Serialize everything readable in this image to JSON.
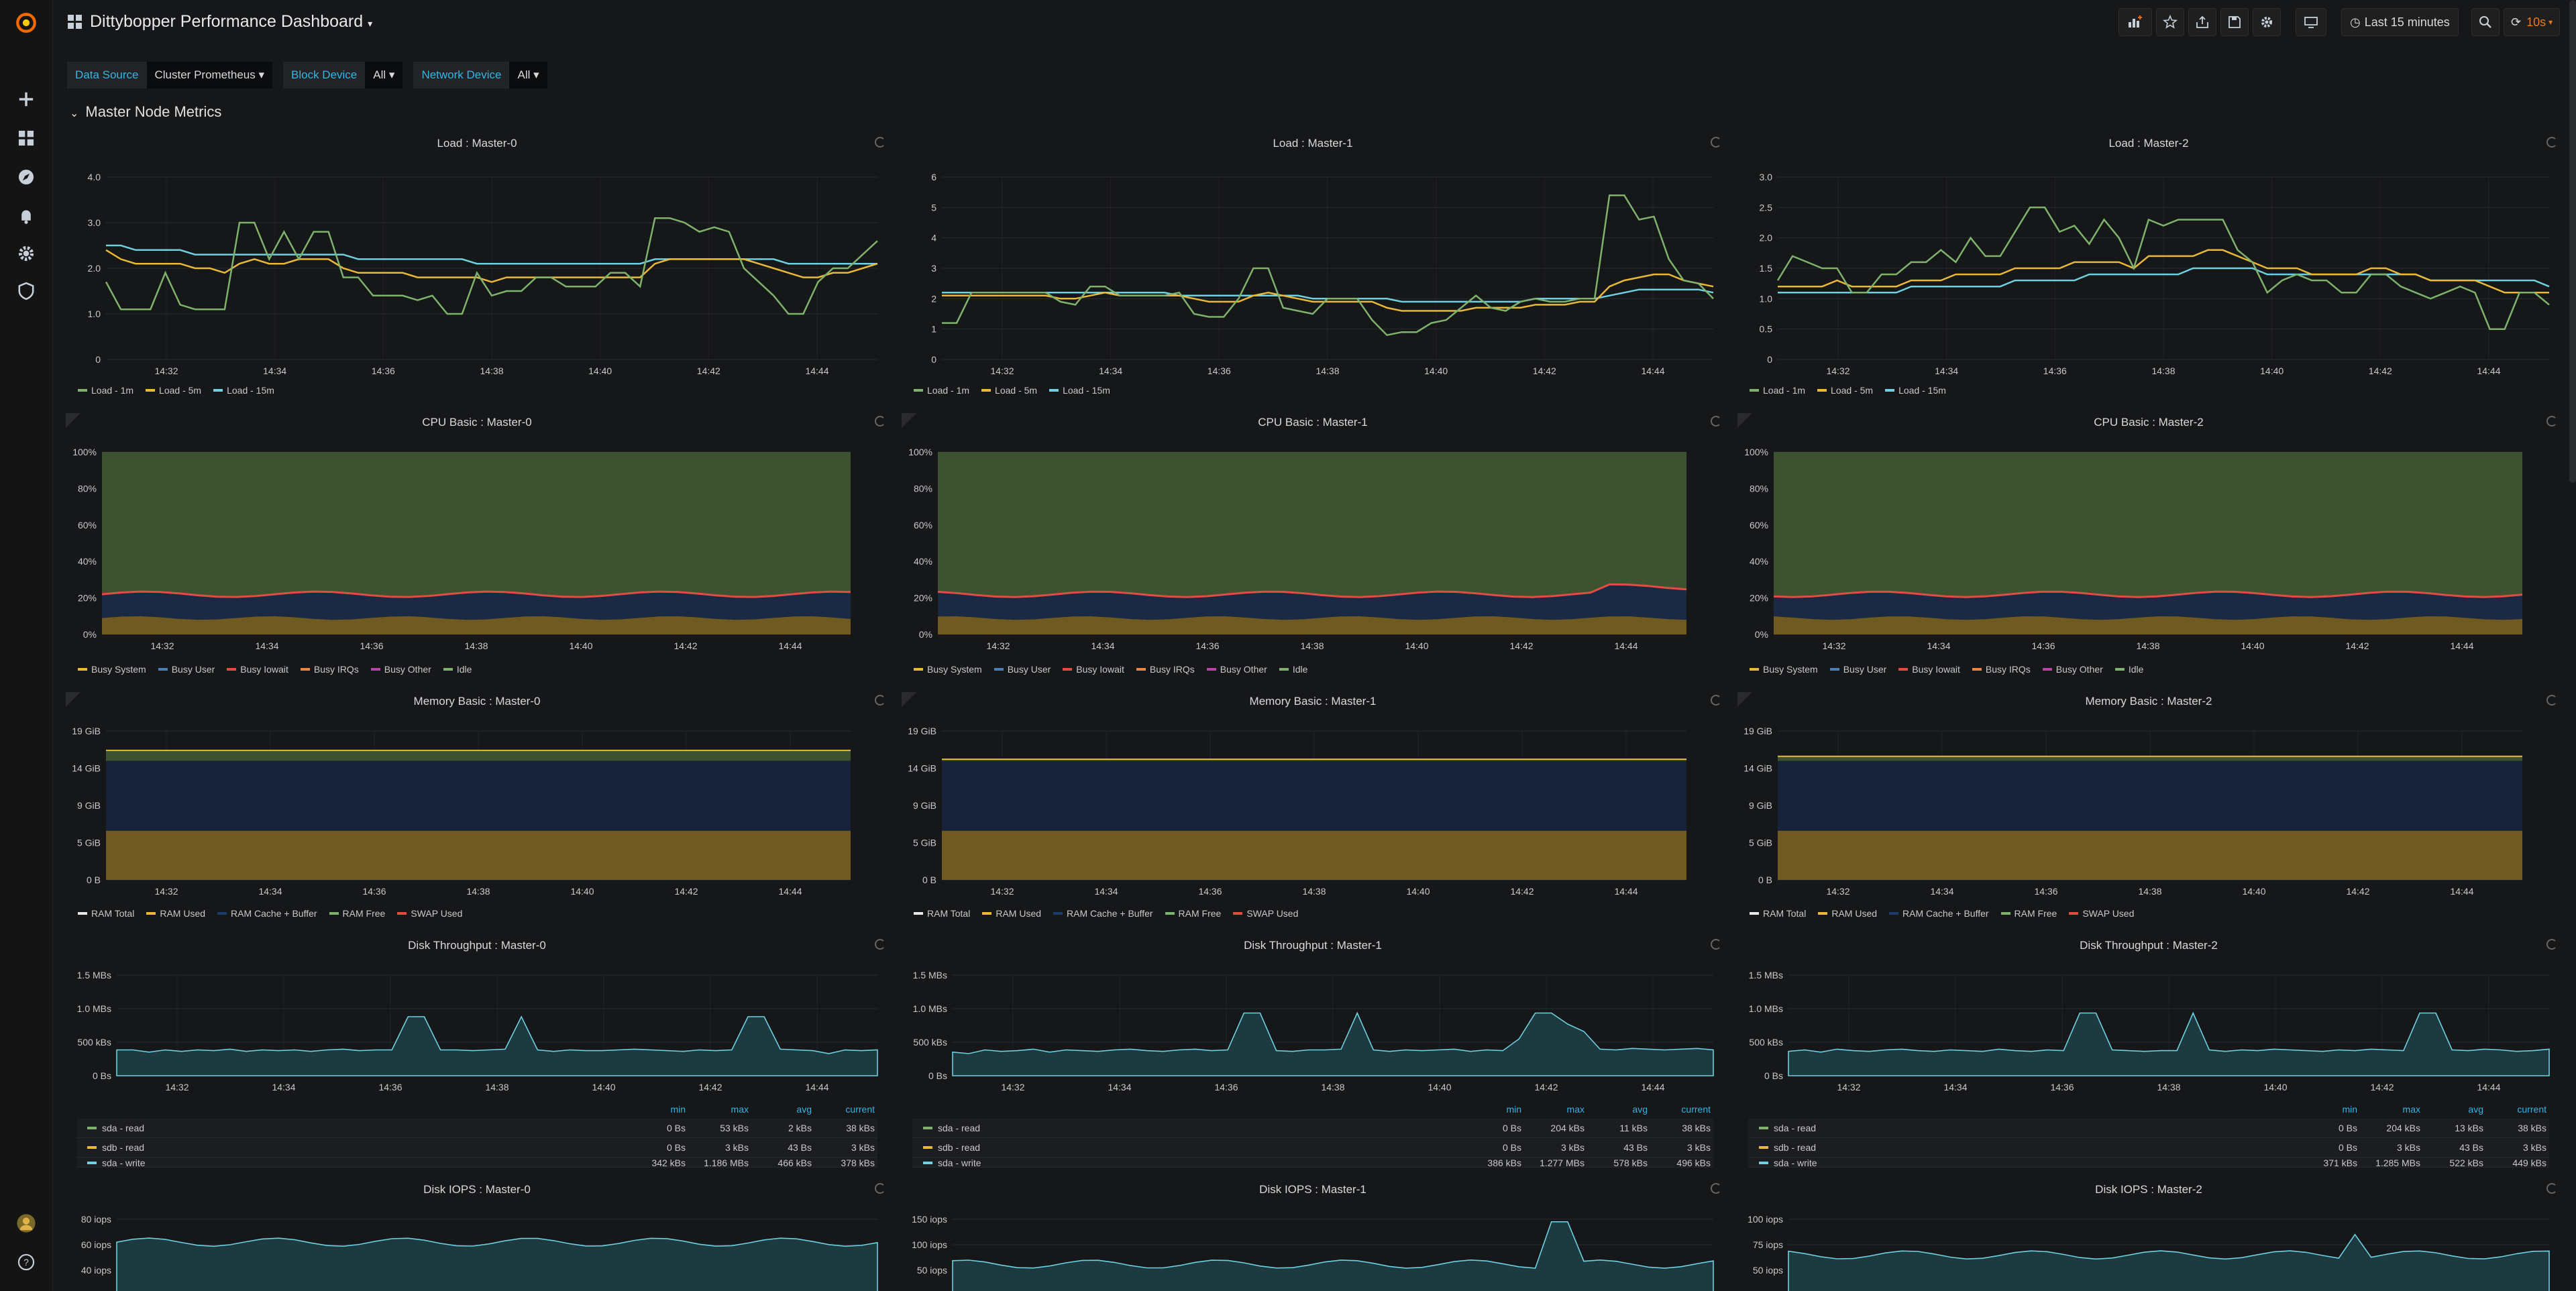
{
  "dashboard": {
    "title": "Dittybopper Performance Dashboard",
    "time_range": "Last 15 minutes",
    "refresh": "10s"
  },
  "variables": [
    {
      "label": "Data Source",
      "value": "Cluster Prometheus"
    },
    {
      "label": "Block Device",
      "value": "All"
    },
    {
      "label": "Network Device",
      "value": "All"
    }
  ],
  "row_title": "Master Node Metrics",
  "colors": {
    "green": "#7eb26d",
    "yellow": "#eab839",
    "cyan": "#6ed0e0",
    "blue": "#1f3b6a",
    "red": "#e24d42",
    "orange": "#ef843c",
    "purple": "#ba43a9",
    "white": "#e8e8e8",
    "disk_cyan": "#6ed0e0"
  },
  "x_ticks": [
    "14:32",
    "14:34",
    "14:36",
    "14:38",
    "14:40",
    "14:42",
    "14:44"
  ],
  "load_panels": [
    {
      "title": "Load : Master-0",
      "y_ticks": [
        "0",
        "1.0",
        "2.0",
        "3.0",
        "4.0"
      ],
      "ymax": 4,
      "legend": [
        "Load - 1m",
        "Load - 5m",
        "Load - 15m"
      ],
      "series": {
        "l1": [
          1.7,
          1.1,
          1.1,
          1.1,
          1.9,
          1.2,
          1.1,
          1.1,
          1.1,
          3.0,
          3.0,
          2.2,
          2.8,
          2.2,
          2.8,
          2.8,
          1.8,
          1.8,
          1.4,
          1.4,
          1.4,
          1.3,
          1.4,
          1.0,
          1.0,
          1.9,
          1.4,
          1.5,
          1.5,
          1.8,
          1.8,
          1.6,
          1.6,
          1.6,
          1.9,
          1.9,
          1.6,
          3.1,
          3.1,
          3.0,
          2.8,
          2.9,
          2.8,
          2.0,
          1.7,
          1.4,
          1.0,
          1.0,
          1.7,
          2.0,
          2.0,
          2.3,
          2.6
        ],
        "l5": [
          2.4,
          2.2,
          2.1,
          2.1,
          2.1,
          2.1,
          2.0,
          2.0,
          1.9,
          2.1,
          2.2,
          2.1,
          2.1,
          2.2,
          2.2,
          2.2,
          2.0,
          1.9,
          1.9,
          1.9,
          1.9,
          1.8,
          1.8,
          1.8,
          1.8,
          1.8,
          1.7,
          1.8,
          1.8,
          1.8,
          1.8,
          1.8,
          1.8,
          1.8,
          1.8,
          1.8,
          1.8,
          2.1,
          2.2,
          2.2,
          2.2,
          2.2,
          2.2,
          2.2,
          2.1,
          2.0,
          1.9,
          1.8,
          1.8,
          1.9,
          1.9,
          2.0,
          2.1
        ],
        "l15": [
          2.5,
          2.5,
          2.4,
          2.4,
          2.4,
          2.4,
          2.3,
          2.3,
          2.3,
          2.3,
          2.3,
          2.3,
          2.3,
          2.3,
          2.3,
          2.3,
          2.3,
          2.2,
          2.2,
          2.2,
          2.2,
          2.2,
          2.2,
          2.2,
          2.2,
          2.1,
          2.1,
          2.1,
          2.1,
          2.1,
          2.1,
          2.1,
          2.1,
          2.1,
          2.1,
          2.1,
          2.1,
          2.2,
          2.2,
          2.2,
          2.2,
          2.2,
          2.2,
          2.2,
          2.2,
          2.2,
          2.1,
          2.1,
          2.1,
          2.1,
          2.1,
          2.1,
          2.1
        ]
      }
    },
    {
      "title": "Load : Master-1",
      "y_ticks": [
        "0",
        "1",
        "2",
        "3",
        "4",
        "5",
        "6"
      ],
      "ymax": 6,
      "legend": [
        "Load - 1m",
        "Load - 5m",
        "Load - 15m"
      ],
      "series": {
        "l1": [
          1.2,
          1.2,
          2.2,
          2.2,
          2.2,
          2.2,
          2.2,
          2.2,
          1.9,
          1.8,
          2.4,
          2.4,
          2.1,
          2.1,
          2.1,
          2.1,
          2.2,
          1.5,
          1.4,
          1.4,
          2.0,
          3.0,
          3.0,
          1.7,
          1.6,
          1.5,
          2.0,
          2.0,
          2.0,
          1.3,
          0.8,
          0.9,
          0.9,
          1.2,
          1.3,
          1.7,
          2.1,
          1.7,
          1.6,
          1.9,
          2.0,
          1.9,
          1.9,
          2.0,
          2.0,
          5.4,
          5.4,
          4.6,
          4.7,
          3.3,
          2.6,
          2.5,
          2.0
        ],
        "l5": [
          2.1,
          2.1,
          2.1,
          2.1,
          2.1,
          2.1,
          2.1,
          2.1,
          2.0,
          2.0,
          2.1,
          2.2,
          2.1,
          2.1,
          2.1,
          2.1,
          2.1,
          2.0,
          1.9,
          1.9,
          1.9,
          2.1,
          2.2,
          2.1,
          2.0,
          1.9,
          1.9,
          1.9,
          1.9,
          1.9,
          1.7,
          1.6,
          1.6,
          1.6,
          1.6,
          1.6,
          1.7,
          1.7,
          1.7,
          1.7,
          1.8,
          1.8,
          1.8,
          1.9,
          1.9,
          2.4,
          2.6,
          2.7,
          2.8,
          2.8,
          2.6,
          2.5,
          2.4
        ],
        "l15": [
          2.2,
          2.2,
          2.2,
          2.2,
          2.2,
          2.2,
          2.2,
          2.2,
          2.2,
          2.2,
          2.2,
          2.2,
          2.2,
          2.2,
          2.2,
          2.2,
          2.1,
          2.1,
          2.1,
          2.1,
          2.1,
          2.1,
          2.1,
          2.1,
          2.1,
          2.0,
          2.0,
          2.0,
          2.0,
          2.0,
          2.0,
          1.9,
          1.9,
          1.9,
          1.9,
          1.9,
          1.9,
          1.9,
          1.9,
          1.9,
          2.0,
          2.0,
          2.0,
          2.0,
          2.0,
          2.1,
          2.2,
          2.3,
          2.3,
          2.3,
          2.3,
          2.3,
          2.2
        ]
      }
    },
    {
      "title": "Load : Master-2",
      "y_ticks": [
        "0",
        "0.5",
        "1.0",
        "1.5",
        "2.0",
        "2.5",
        "3.0"
      ],
      "ymax": 3,
      "legend": [
        "Load - 1m",
        "Load - 5m",
        "Load - 15m"
      ],
      "series": {
        "l1": [
          1.3,
          1.7,
          1.6,
          1.5,
          1.5,
          1.1,
          1.1,
          1.4,
          1.4,
          1.6,
          1.6,
          1.8,
          1.6,
          2.0,
          1.7,
          1.7,
          2.1,
          2.5,
          2.5,
          2.1,
          2.2,
          1.9,
          2.3,
          2.0,
          1.5,
          2.3,
          2.2,
          2.3,
          2.3,
          2.3,
          2.3,
          1.8,
          1.6,
          1.1,
          1.3,
          1.4,
          1.3,
          1.3,
          1.1,
          1.1,
          1.4,
          1.4,
          1.2,
          1.1,
          1.0,
          1.1,
          1.2,
          1.1,
          0.5,
          0.5,
          1.1,
          1.1,
          0.9
        ],
        "l5": [
          1.2,
          1.2,
          1.2,
          1.2,
          1.3,
          1.2,
          1.2,
          1.2,
          1.2,
          1.3,
          1.3,
          1.3,
          1.4,
          1.4,
          1.4,
          1.4,
          1.5,
          1.5,
          1.5,
          1.5,
          1.6,
          1.6,
          1.6,
          1.6,
          1.5,
          1.7,
          1.7,
          1.7,
          1.7,
          1.8,
          1.8,
          1.7,
          1.6,
          1.5,
          1.5,
          1.5,
          1.4,
          1.4,
          1.4,
          1.4,
          1.5,
          1.5,
          1.4,
          1.4,
          1.3,
          1.3,
          1.3,
          1.3,
          1.2,
          1.1,
          1.1,
          1.1,
          1.1
        ],
        "l15": [
          1.1,
          1.1,
          1.1,
          1.1,
          1.1,
          1.1,
          1.1,
          1.1,
          1.1,
          1.2,
          1.2,
          1.2,
          1.2,
          1.2,
          1.2,
          1.2,
          1.3,
          1.3,
          1.3,
          1.3,
          1.3,
          1.4,
          1.4,
          1.4,
          1.4,
          1.4,
          1.4,
          1.4,
          1.5,
          1.5,
          1.5,
          1.5,
          1.5,
          1.4,
          1.4,
          1.4,
          1.4,
          1.4,
          1.4,
          1.4,
          1.4,
          1.4,
          1.4,
          1.4,
          1.3,
          1.3,
          1.3,
          1.3,
          1.3,
          1.3,
          1.3,
          1.3,
          1.2
        ]
      }
    }
  ],
  "cpu_panels": [
    {
      "title": "CPU Basic : Master-0"
    },
    {
      "title": "CPU Basic : Master-1"
    },
    {
      "title": "CPU Basic : Master-2"
    }
  ],
  "cpu_y_ticks": [
    "0%",
    "20%",
    "40%",
    "60%",
    "80%",
    "100%"
  ],
  "cpu_legend": [
    "Busy System",
    "Busy User",
    "Busy Iowait",
    "Busy IRQs",
    "Busy Other",
    "Idle"
  ],
  "mem_panels": [
    {
      "title": "Memory Basic : Master-0"
    },
    {
      "title": "Memory Basic : Master-1"
    },
    {
      "title": "Memory Basic : Master-2"
    }
  ],
  "mem_y_ticks": [
    "0 B",
    "5 GiB",
    "9 GiB",
    "14 GiB",
    "19 GiB"
  ],
  "mem_legend": [
    "RAM Total",
    "RAM Used",
    "RAM Cache + Buffer",
    "RAM Free",
    "SWAP Used"
  ],
  "disk_panels": [
    {
      "title": "Disk Throughput : Master-0",
      "rows": [
        {
          "name": "sda - read",
          "min": "0 Bs",
          "max": "53 kBs",
          "avg": "2 kBs",
          "current": "38 kBs"
        },
        {
          "name": "sdb - read",
          "min": "0 Bs",
          "max": "3 kBs",
          "avg": "43 Bs",
          "current": "3 kBs"
        },
        {
          "name": "sda - write",
          "min": "342 kBs",
          "max": "1.186 MBs",
          "avg": "466 kBs",
          "current": "378 kBs"
        }
      ]
    },
    {
      "title": "Disk Throughput : Master-1",
      "rows": [
        {
          "name": "sda - read",
          "min": "0 Bs",
          "max": "204 kBs",
          "avg": "11 kBs",
          "current": "38 kBs"
        },
        {
          "name": "sdb - read",
          "min": "0 Bs",
          "max": "3 kBs",
          "avg": "43 Bs",
          "current": "3 kBs"
        },
        {
          "name": "sda - write",
          "min": "386 kBs",
          "max": "1.277 MBs",
          "avg": "578 kBs",
          "current": "496 kBs"
        }
      ]
    },
    {
      "title": "Disk Throughput : Master-2",
      "rows": [
        {
          "name": "sda - read",
          "min": "0 Bs",
          "max": "204 kBs",
          "avg": "13 kBs",
          "current": "38 kBs"
        },
        {
          "name": "sdb - read",
          "min": "0 Bs",
          "max": "3 kBs",
          "avg": "43 Bs",
          "current": "3 kBs"
        },
        {
          "name": "sda - write",
          "min": "371 kBs",
          "max": "1.285 MBs",
          "avg": "522 kBs",
          "current": "449 kBs"
        }
      ]
    }
  ],
  "disk_y_ticks": [
    "0 Bs",
    "500 kBs",
    "1.0 MBs",
    "1.5 MBs"
  ],
  "disk_table_headers": [
    "min",
    "max",
    "avg",
    "current"
  ],
  "iops_panels": [
    {
      "title": "Disk IOPS : Master-0",
      "y_ticks": [
        "40 iops",
        "60 iops",
        "80 iops"
      ]
    },
    {
      "title": "Disk IOPS : Master-1",
      "y_ticks": [
        "50 iops",
        "100 iops",
        "150 iops"
      ]
    },
    {
      "title": "Disk IOPS : Master-2",
      "y_ticks": [
        "50 iops",
        "75 iops",
        "100 iops"
      ]
    }
  ]
}
